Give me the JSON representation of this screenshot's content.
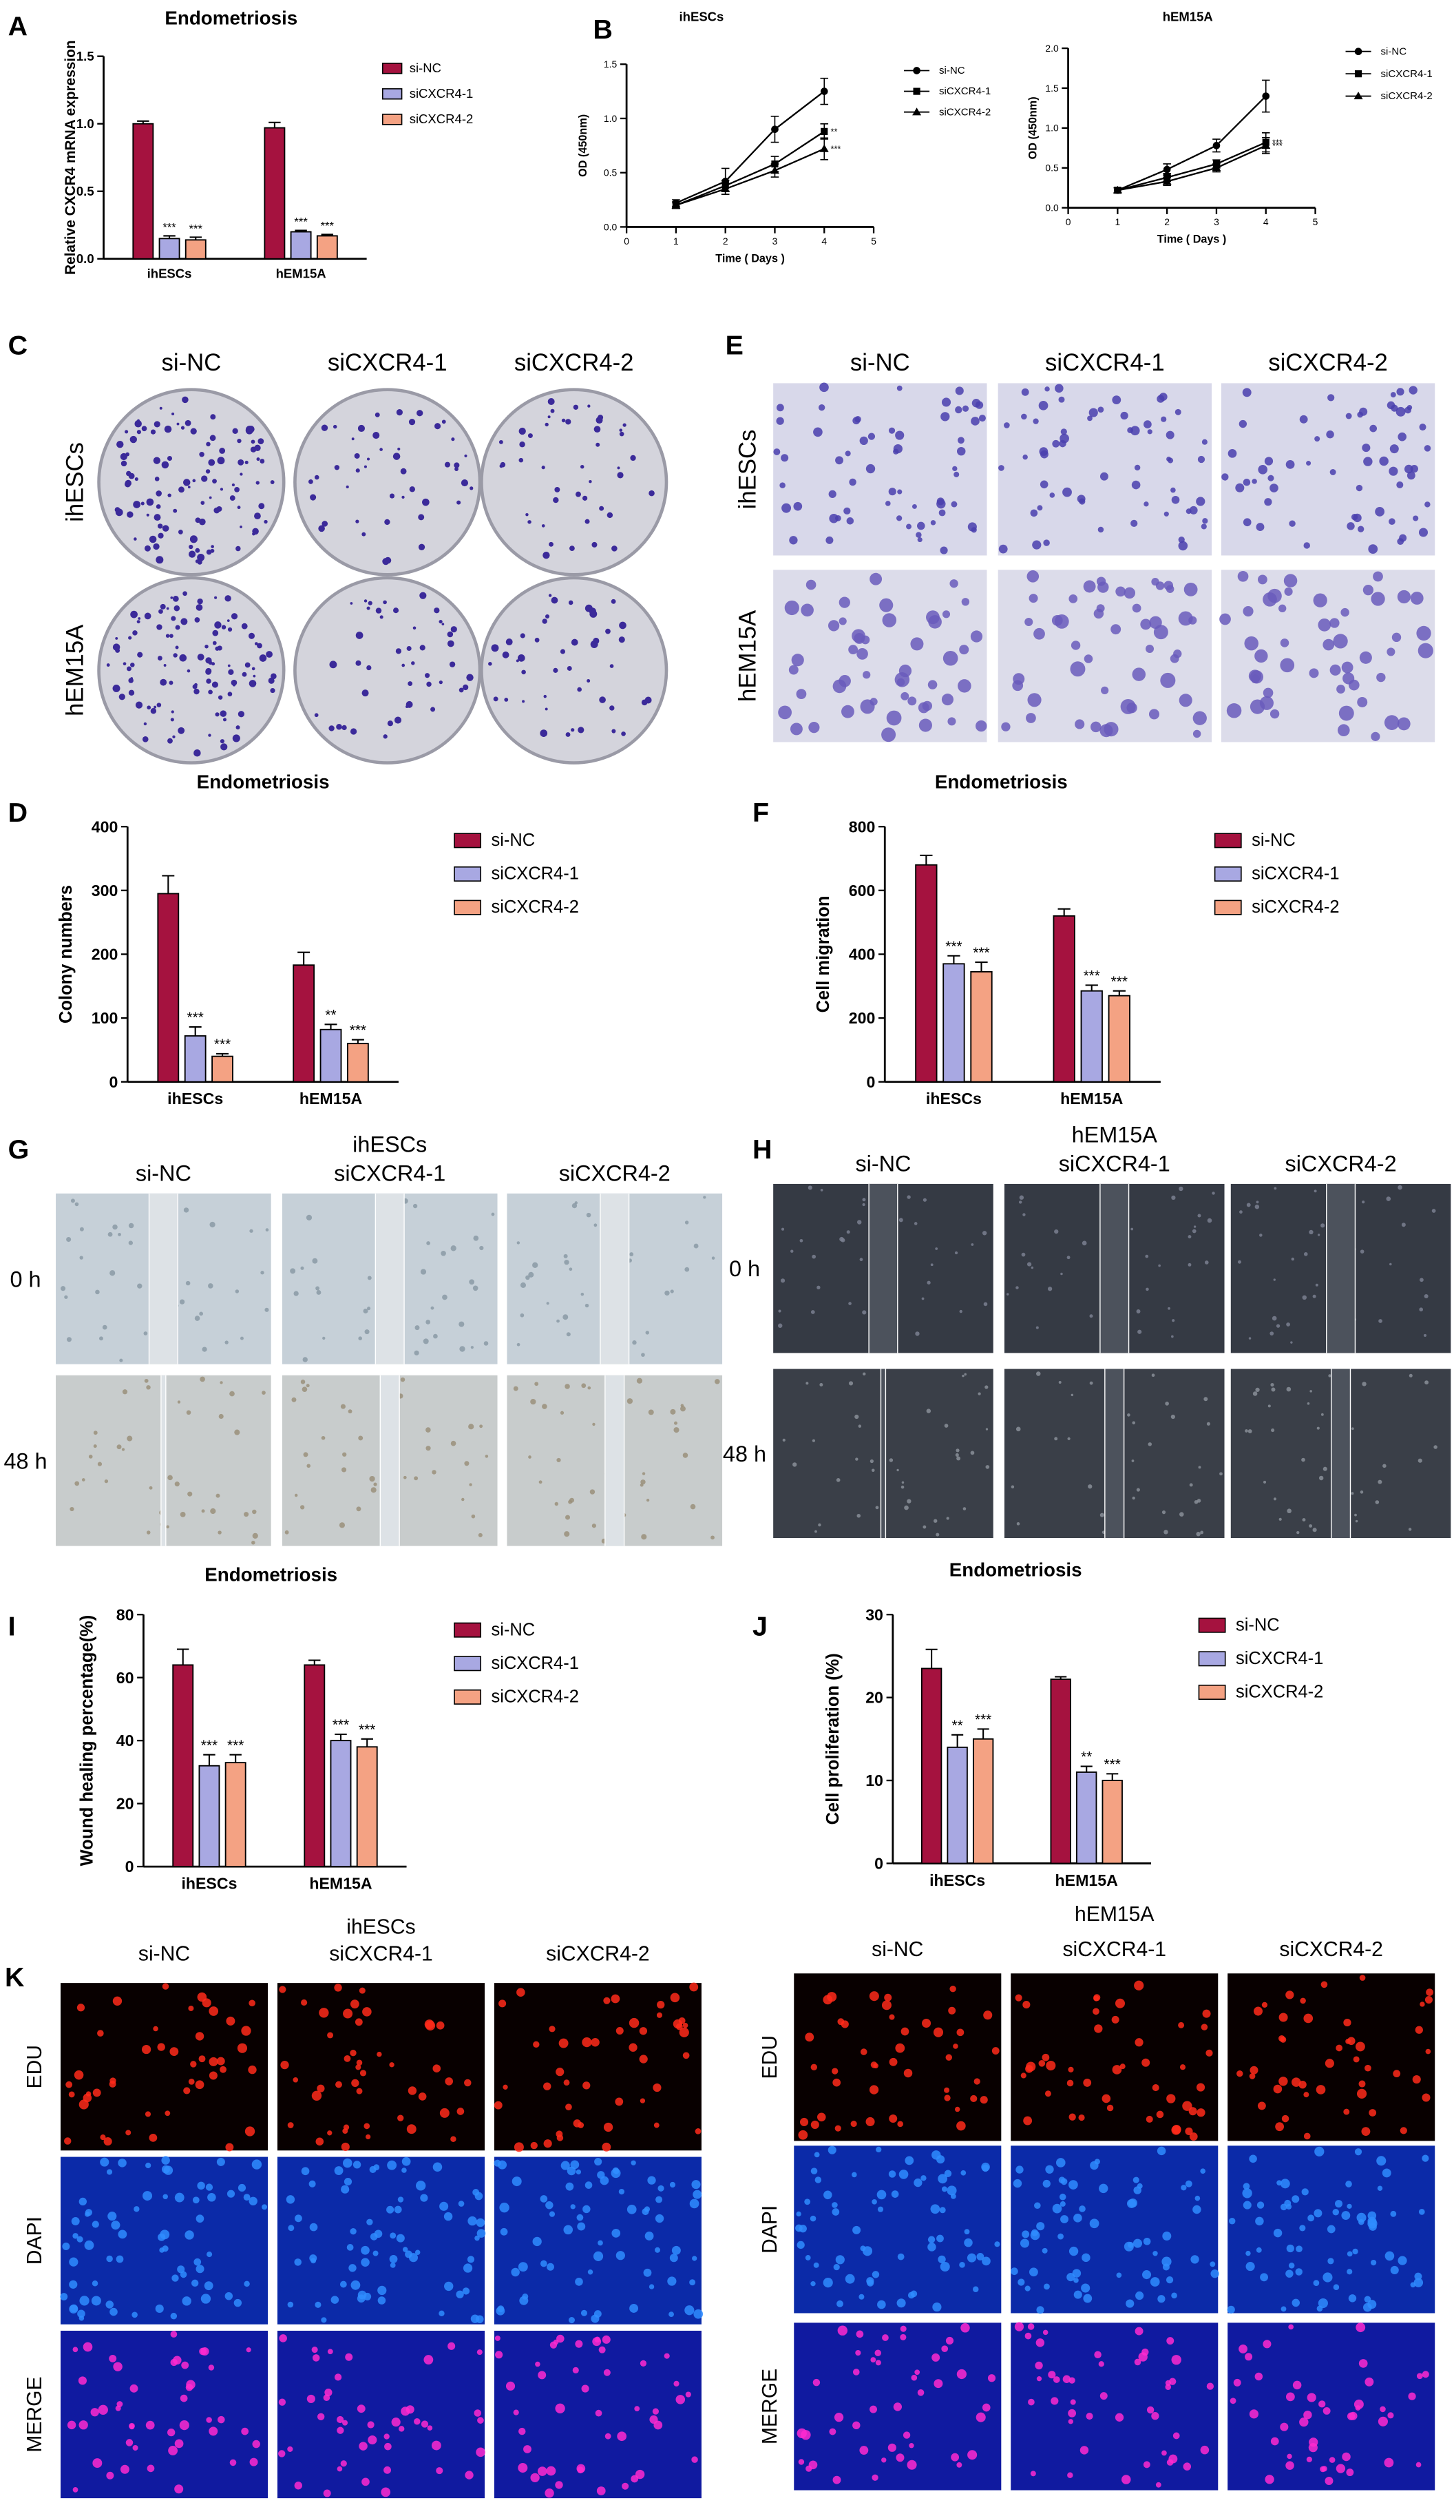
{
  "chart_data": [
    {
      "type": "bar",
      "panel": "A",
      "title": "Endometriosis",
      "ylabel": "Relative CXCR4 mRNA expression",
      "categories": [
        "ihESCs",
        "hEM15A"
      ],
      "series": [
        {
          "name": "si-NC",
          "color": "#a5123f",
          "values": [
            1.0,
            0.97
          ],
          "errors": [
            0.02,
            0.04
          ]
        },
        {
          "name": "siCXCR4-1",
          "color": "#a8a8e2",
          "values": [
            0.15,
            0.2
          ],
          "errors": [
            0.02,
            0.01
          ],
          "annotations": [
            "***",
            "***"
          ]
        },
        {
          "name": "siCXCR4-2",
          "color": "#f4a283",
          "values": [
            0.14,
            0.17
          ],
          "errors": [
            0.02,
            0.01
          ],
          "annotations": [
            "***",
            "***"
          ]
        }
      ],
      "ylim": [
        0,
        1.5
      ],
      "yticks": [
        {
          "value": 0,
          "label": "0.0"
        },
        0.5,
        {
          "value": 1,
          "label": "1.0"
        },
        1.5
      ]
    },
    {
      "type": "line",
      "panel": "B",
      "title": "ihESCs",
      "xlabel": "Time ( Days )",
      "ylabel": "OD (450nm)",
      "x": [
        1,
        2,
        3,
        4
      ],
      "series": [
        {
          "name": "si-NC",
          "color": "#000000",
          "values": [
            0.22,
            0.42,
            0.9,
            1.25
          ],
          "errors": [
            0.03,
            0.12,
            0.12,
            0.12
          ]
        },
        {
          "name": "siCXCR4-1",
          "color": "#000000",
          "values": [
            0.2,
            0.38,
            0.58,
            0.88
          ],
          "errors": [
            0.03,
            0.05,
            0.07,
            0.07
          ],
          "annotation": "**"
        },
        {
          "name": "siCXCR4-2",
          "color": "#000000",
          "values": [
            0.2,
            0.35,
            0.52,
            0.72
          ],
          "errors": [
            0.03,
            0.05,
            0.06,
            0.1
          ],
          "annotation": "***"
        }
      ],
      "xlim": [
        0,
        5
      ],
      "xticks": [
        0,
        1,
        2,
        3,
        4,
        5
      ],
      "ylim": [
        0,
        1.5
      ],
      "yticks": [
        {
          "value": 0,
          "label": "0.0"
        },
        0.5,
        {
          "value": 1,
          "label": "1.0"
        },
        1.5
      ]
    },
    {
      "type": "line",
      "title": "hEM15A",
      "xlabel": "Time ( Days )",
      "ylabel": "OD (450nm)",
      "x": [
        1,
        2,
        3,
        4
      ],
      "series": [
        {
          "name": "si-NC",
          "color": "#000000",
          "values": [
            0.22,
            0.48,
            0.78,
            1.4
          ],
          "errors": [
            0.03,
            0.07,
            0.08,
            0.2
          ]
        },
        {
          "name": "siCXCR4-1",
          "color": "#000000",
          "values": [
            0.22,
            0.38,
            0.55,
            0.82
          ],
          "errors": [
            0.03,
            0.05,
            0.05,
            0.12
          ],
          "annotation": "***"
        },
        {
          "name": "siCXCR4-2",
          "color": "#000000",
          "values": [
            0.22,
            0.33,
            0.5,
            0.78
          ],
          "errors": [
            0.03,
            0.05,
            0.05,
            0.1
          ],
          "annotation": "***"
        }
      ],
      "xlim": [
        0,
        5
      ],
      "xticks": [
        0,
        1,
        2,
        3,
        4,
        5
      ],
      "ylim": [
        0,
        2
      ],
      "yticks": [
        {
          "value": 0,
          "label": "0.0"
        },
        0.5,
        {
          "value": 1,
          "label": "1.0"
        },
        1.5,
        {
          "value": 2,
          "label": "2.0"
        }
      ]
    },
    {
      "type": "bar",
      "panel": "D",
      "title": "Endometriosis",
      "ylabel": "Colony numbers",
      "categories": [
        "ihESCs",
        "hEM15A"
      ],
      "series": [
        {
          "name": "si-NC",
          "color": "#a5123f",
          "values": [
            295,
            183
          ],
          "errors": [
            28,
            20
          ]
        },
        {
          "name": "siCXCR4-1",
          "color": "#a8a8e2",
          "values": [
            72,
            82
          ],
          "errors": [
            14,
            8
          ],
          "annotations": [
            "***",
            "**"
          ]
        },
        {
          "name": "siCXCR4-2",
          "color": "#f4a283",
          "values": [
            40,
            60
          ],
          "errors": [
            4,
            6
          ],
          "annotations": [
            "***",
            "***"
          ]
        }
      ],
      "ylim": [
        0,
        400
      ],
      "yticks": [
        0,
        100,
        200,
        300,
        400
      ]
    },
    {
      "type": "bar",
      "panel": "F",
      "title": "Endometriosis",
      "ylabel": "Cell migration",
      "categories": [
        "ihESCs",
        "hEM15A"
      ],
      "series": [
        {
          "name": "si-NC",
          "color": "#a5123f",
          "values": [
            680,
            520
          ],
          "errors": [
            30,
            22
          ]
        },
        {
          "name": "siCXCR4-1",
          "color": "#a8a8e2",
          "values": [
            370,
            285
          ],
          "errors": [
            25,
            18
          ],
          "annotations": [
            "***",
            "***"
          ]
        },
        {
          "name": "siCXCR4-2",
          "color": "#f4a283",
          "values": [
            345,
            270
          ],
          "errors": [
            30,
            15
          ],
          "annotations": [
            "***",
            "***"
          ]
        }
      ],
      "ylim": [
        0,
        800
      ],
      "yticks": [
        0,
        200,
        400,
        600,
        800
      ]
    },
    {
      "type": "bar",
      "panel": "I",
      "title": "Endometriosis",
      "ylabel": "Wound healing percentage(%)",
      "categories": [
        "ihESCs",
        "hEM15A"
      ],
      "series": [
        {
          "name": "si-NC",
          "color": "#a5123f",
          "values": [
            64,
            64
          ],
          "errors": [
            5,
            1.5
          ]
        },
        {
          "name": "siCXCR4-1",
          "color": "#a8a8e2",
          "values": [
            32,
            40
          ],
          "errors": [
            3.5,
            2
          ],
          "annotations": [
            "***",
            "***"
          ]
        },
        {
          "name": "siCXCR4-2",
          "color": "#f4a283",
          "values": [
            33,
            38
          ],
          "errors": [
            2.5,
            2.5
          ],
          "annotations": [
            "***",
            "***"
          ]
        }
      ],
      "ylim": [
        0,
        80
      ],
      "yticks": [
        0,
        20,
        40,
        60,
        80
      ]
    },
    {
      "type": "bar",
      "panel": "J",
      "title": "Endometriosis",
      "ylabel": "Cell proliferation (%)",
      "categories": [
        "ihESCs",
        "hEM15A"
      ],
      "series": [
        {
          "name": "si-NC",
          "color": "#a5123f",
          "values": [
            23.5,
            22.2
          ],
          "errors": [
            2.3,
            0.3
          ]
        },
        {
          "name": "siCXCR4-1",
          "color": "#a8a8e2",
          "values": [
            14,
            11
          ],
          "errors": [
            1.5,
            0.7
          ],
          "annotations": [
            "**",
            "**"
          ]
        },
        {
          "name": "siCXCR4-2",
          "color": "#f4a283",
          "values": [
            15,
            10
          ],
          "errors": [
            1.2,
            0.8
          ],
          "annotations": [
            "***",
            "***"
          ]
        }
      ],
      "ylim": [
        0,
        30
      ],
      "yticks": [
        0,
        10,
        20,
        30
      ]
    }
  ],
  "image_panels": [
    {
      "letter": "C",
      "columns": [
        "si-NC",
        "siCXCR4-1",
        "siCXCR4-2"
      ],
      "rows": [
        "ihESCs",
        "hEM15A"
      ]
    },
    {
      "letter": "E",
      "columns": [
        "si-NC",
        "siCXCR4-1",
        "siCXCR4-2"
      ],
      "rows": [
        "ihESCs",
        "hEM15A"
      ]
    },
    {
      "letter": "G",
      "header": "ihESCs",
      "columns": [
        "si-NC",
        "siCXCR4-1",
        "siCXCR4-2"
      ],
      "rows": [
        "0 h",
        "48 h"
      ]
    },
    {
      "letter": "H",
      "header": "hEM15A",
      "columns": [
        "si-NC",
        "siCXCR4-1",
        "siCXCR4-2"
      ],
      "rows": [
        "0 h",
        "48 h"
      ]
    },
    {
      "letter": "K",
      "header": "ihESCs",
      "columns": [
        "si-NC",
        "siCXCR4-1",
        "siCXCR4-2"
      ],
      "rows": [
        "EDU",
        "DAPI",
        "MERGE"
      ]
    },
    {
      "header": "hEM15A",
      "columns": [
        "si-NC",
        "siCXCR4-1",
        "siCXCR4-2"
      ],
      "rows": [
        "EDU",
        "DAPI",
        "MERGE"
      ]
    }
  ]
}
